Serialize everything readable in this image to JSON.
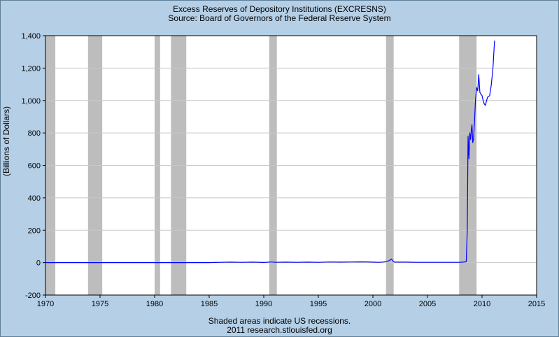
{
  "chart_data": {
    "type": "line",
    "title": "Excess Reserves of Depository Institutions (EXCRESNS)",
    "subtitle": "Source: Board of Governors of the Federal Reserve System",
    "ylabel": "(Billions of Dollars)",
    "xlabel": "",
    "xlim": [
      1970,
      2015
    ],
    "ylim": [
      -200,
      1400
    ],
    "xticks": [
      1970,
      1975,
      1980,
      1985,
      1990,
      1995,
      2000,
      2005,
      2010,
      2015
    ],
    "yticks": [
      -200,
      0,
      200,
      400,
      600,
      800,
      1000,
      1200,
      1400
    ],
    "ytick_labels": [
      "-200",
      "0",
      "200",
      "400",
      "600",
      "800",
      "1,000",
      "1,200",
      "1,400"
    ],
    "grid": true,
    "legend": "none",
    "recessions": [
      [
        1969.9,
        1970.9
      ],
      [
        1973.9,
        1975.2
      ],
      [
        1980.0,
        1980.5
      ],
      [
        1981.5,
        1982.9
      ],
      [
        1990.5,
        1991.2
      ],
      [
        2001.2,
        2001.9
      ],
      [
        2007.9,
        2009.5
      ]
    ],
    "series": [
      {
        "color": "#0000ff",
        "x": [
          1970,
          1975,
          1980,
          1985,
          1985.5,
          1986,
          1987,
          1988,
          1989,
          1990,
          1990.7,
          1991,
          1992,
          1993,
          1994,
          1995,
          1996,
          1997,
          1998,
          1999,
          2000,
          2000.5,
          2001,
          2001.5,
          2001.7,
          2001.9,
          2002,
          2003,
          2004,
          2005,
          2006,
          2007,
          2008,
          2008.55,
          2008.65,
          2008.72,
          2008.8,
          2008.88,
          2008.95,
          2009.02,
          2009.08,
          2009.15,
          2009.22,
          2009.3,
          2009.4,
          2009.5,
          2009.6,
          2009.7,
          2009.8,
          2009.9,
          2010.0,
          2010.1,
          2010.2,
          2010.3,
          2010.5,
          2010.7,
          2010.85,
          2011.0,
          2011.1,
          2011.15
        ],
        "y": [
          0,
          0,
          0,
          0,
          1,
          2,
          3,
          2,
          3,
          1,
          4,
          2,
          3,
          2,
          3,
          2,
          4,
          3,
          4,
          5,
          3,
          2,
          4,
          12,
          22,
          6,
          3,
          3,
          2,
          2,
          2,
          2,
          2,
          5,
          200,
          780,
          640,
          800,
          760,
          820,
          850,
          740,
          760,
          860,
          1000,
          1080,
          1060,
          1160,
          1050,
          1040,
          1030,
          1000,
          980,
          970,
          1020,
          1030,
          1100,
          1200,
          1320,
          1370
        ]
      }
    ]
  },
  "footer": {
    "line1": "Shaded areas indicate US recessions.",
    "line2": "2011 research.stlouisfed.org"
  }
}
